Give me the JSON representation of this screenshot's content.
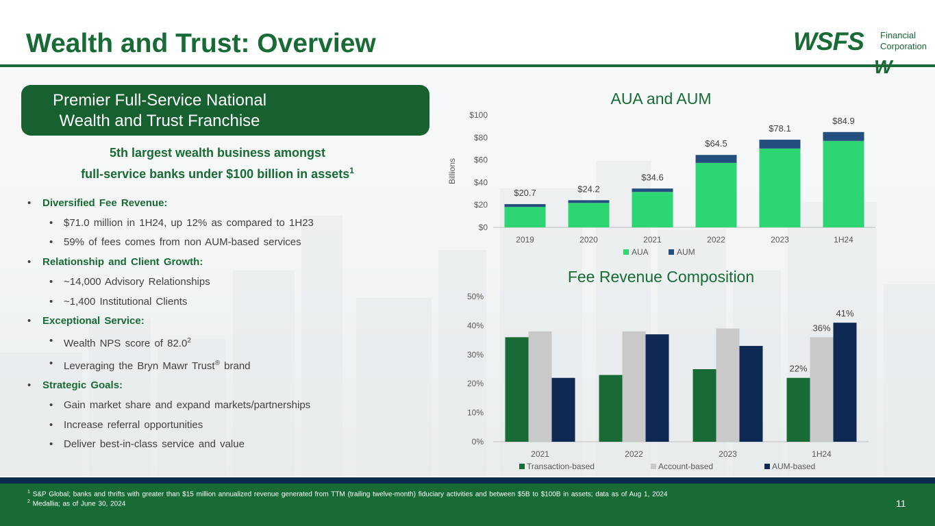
{
  "title": "Wealth and Trust: Overview",
  "logo": {
    "main": "WSFS",
    "sub_line1": "Financial",
    "sub_line2": "Corporation",
    "mark": "W"
  },
  "pill": {
    "line1": "Premier Full-Service National",
    "line2": "Wealth and Trust Franchise"
  },
  "highlight": {
    "line1": "5th largest wealth business amongst",
    "line2": "full-service banks under $100 billion in assets",
    "sup": "1"
  },
  "bullets": [
    {
      "level": 1,
      "text": "Diversified Fee Revenue:"
    },
    {
      "level": 2,
      "text": "$71.0 million in 1H24, up 12% as compared to 1H23"
    },
    {
      "level": 2,
      "text": "59% of fees comes from non AUM-based services"
    },
    {
      "level": 1,
      "text": "Relationship and Client Growth:"
    },
    {
      "level": 2,
      "text": "~14,000 Advisory Relationships"
    },
    {
      "level": 2,
      "text": "~1,400 Institutional Clients"
    },
    {
      "level": 1,
      "text": "Exceptional Service:"
    },
    {
      "level": 2,
      "text": "Wealth NPS score of 82.0",
      "sup": "2"
    },
    {
      "level": 2,
      "text": "Leveraging the Bryn Mawr Trust",
      "sup": "®",
      "after": " brand"
    },
    {
      "level": 1,
      "text": "Strategic Goals:"
    },
    {
      "level": 2,
      "text": "Gain market share and expand markets/partnerships"
    },
    {
      "level": 2,
      "text": "Increase referral opportunities"
    },
    {
      "level": 2,
      "text": "Deliver best-in-class service and value"
    }
  ],
  "footnotes": {
    "fn1_sup": "1",
    "fn1": "S&P Global; banks and thrifts with greater than $15 million annualized revenue generated from TTM (trailing twelve-month) fiduciary activities and between $5B to $100B in assets; data as of Aug 1, 2024",
    "fn2_sup": "2",
    "fn2": "Medallia; as of June 30, 2024"
  },
  "page_number": "11",
  "colors": {
    "brand_green": "#186b35",
    "aua": "#2ed573",
    "aum": "#234e7d",
    "transaction": "#186b35",
    "account": "#c9c9c9",
    "aum_based": "#0f2a52",
    "footer_stripe": "#0d2b4f"
  },
  "chart_data": [
    {
      "type": "bar",
      "stacked": true,
      "title": "AUA and AUM",
      "ylabel": "Billions",
      "categories": [
        "2019",
        "2020",
        "2021",
        "2022",
        "2023",
        "1H24"
      ],
      "series": [
        {
          "name": "AUA",
          "values": [
            18.2,
            21.8,
            31.6,
            57.4,
            70.2,
            77.0
          ]
        },
        {
          "name": "AUM",
          "values": [
            2.5,
            2.4,
            3.0,
            7.1,
            7.9,
            7.9
          ]
        }
      ],
      "totals": [
        20.7,
        24.2,
        34.6,
        64.5,
        78.1,
        84.9
      ],
      "total_labels": [
        "$20.7",
        "$24.2",
        "$34.6",
        "$64.5",
        "$78.1",
        "$84.9"
      ],
      "ylim": [
        0,
        100
      ],
      "yticks": [
        "$0",
        "$20",
        "$40",
        "$60",
        "$80",
        "$100"
      ],
      "legend": "bottom"
    },
    {
      "type": "bar",
      "title": "Fee Revenue Composition",
      "categories": [
        "2021",
        "2022",
        "2023",
        "1H24"
      ],
      "series": [
        {
          "name": "Transaction-based",
          "values": [
            36,
            23,
            25,
            22
          ]
        },
        {
          "name": "Account-based",
          "values": [
            38,
            38,
            39,
            36
          ]
        },
        {
          "name": "AUM-based",
          "values": [
            22,
            37,
            33,
            41
          ]
        }
      ],
      "data_labels": [
        {
          "series": 0,
          "category": 3,
          "text": "22%"
        },
        {
          "series": 1,
          "category": 3,
          "text": "36%"
        },
        {
          "series": 2,
          "category": 3,
          "text": "41%"
        }
      ],
      "ylim": [
        0,
        50
      ],
      "yticks": [
        "0%",
        "10%",
        "20%",
        "30%",
        "40%",
        "50%"
      ],
      "legend": "bottom"
    }
  ]
}
